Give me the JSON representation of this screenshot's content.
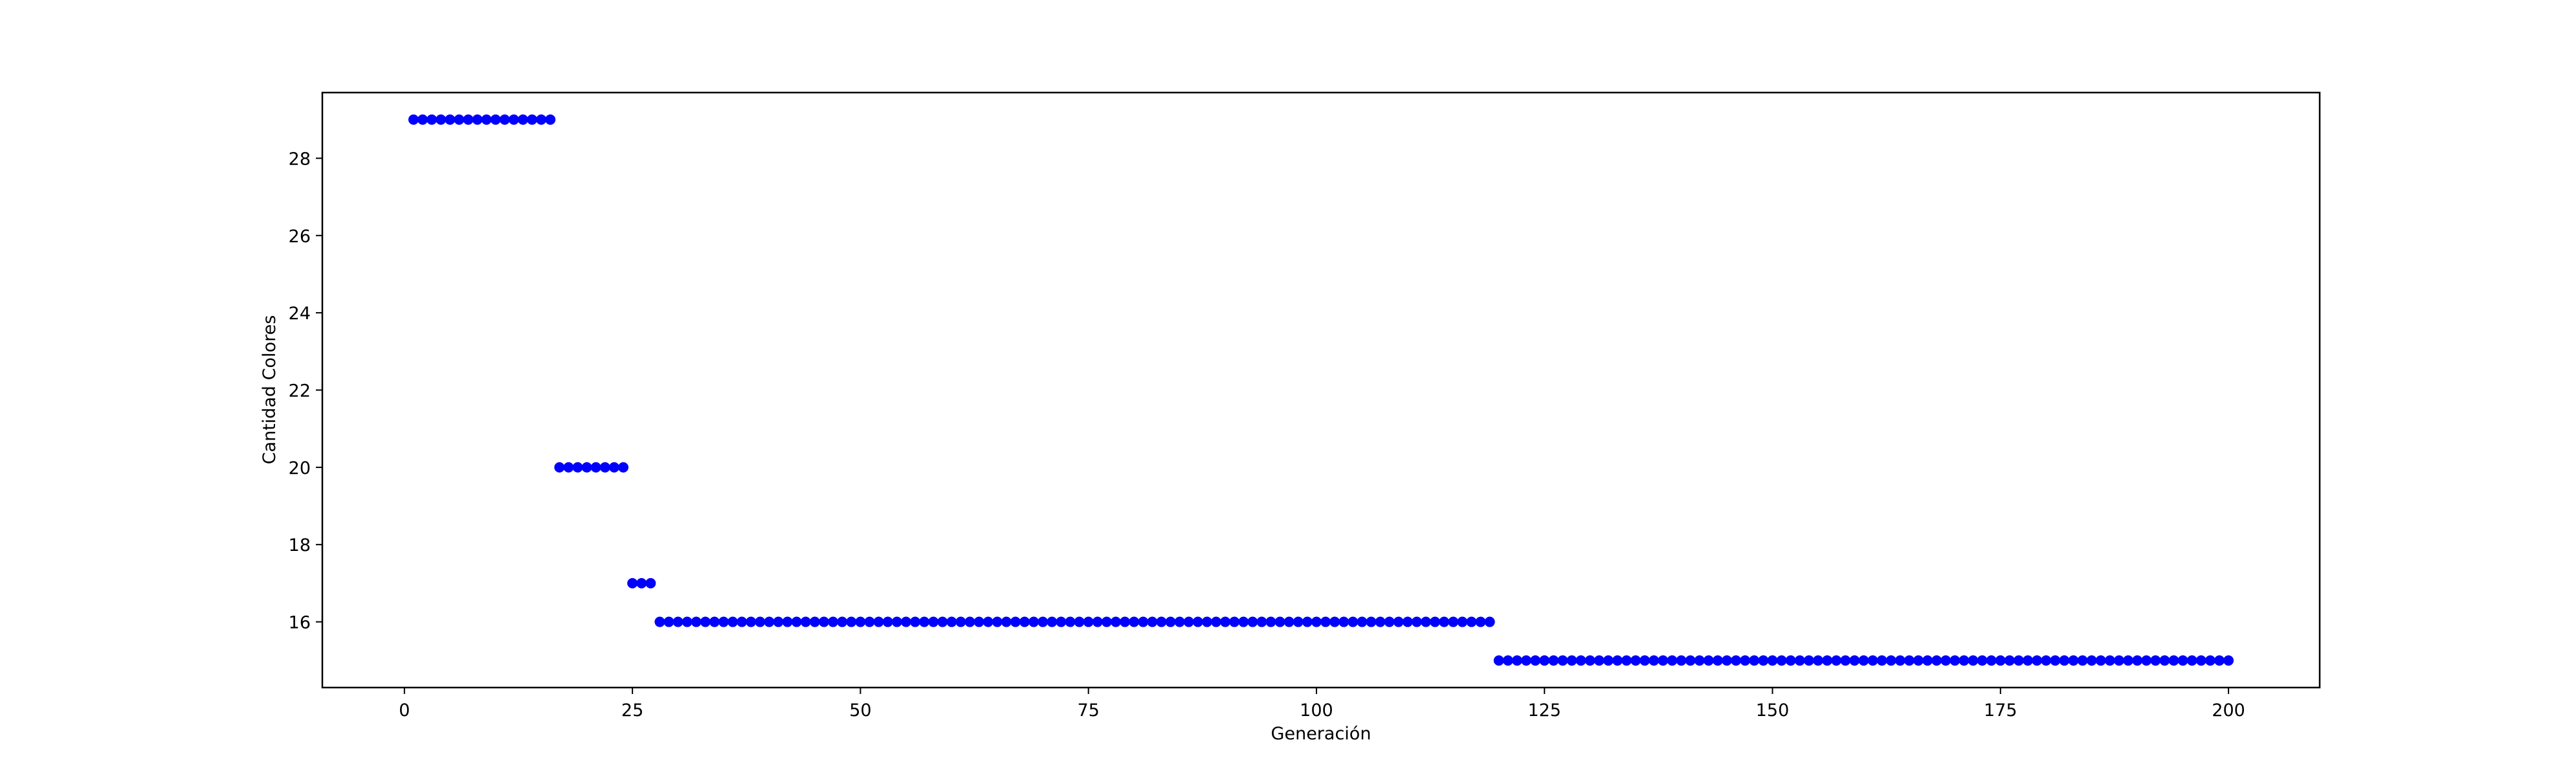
{
  "chart_data": {
    "type": "scatter",
    "title": "",
    "xlabel": "Generación",
    "ylabel": "Cantidad Colores",
    "xlim": [
      -9,
      210
    ],
    "ylim": [
      14.3,
      29.7
    ],
    "xticks": [
      0,
      25,
      50,
      75,
      100,
      125,
      150,
      175,
      200
    ],
    "yticks": [
      16,
      18,
      20,
      22,
      24,
      26,
      28
    ],
    "grid": false,
    "legend": "none",
    "marker_color": "#0000ff",
    "series": [
      {
        "segments": [
          {
            "x_from": 1,
            "x_to": 16,
            "y": 29
          },
          {
            "x_from": 17,
            "x_to": 24,
            "y": 20
          },
          {
            "x_from": 25,
            "x_to": 27,
            "y": 17
          },
          {
            "x_from": 28,
            "x_to": 119,
            "y": 16
          },
          {
            "x_from": 120,
            "x_to": 200,
            "y": 15
          }
        ]
      }
    ]
  }
}
